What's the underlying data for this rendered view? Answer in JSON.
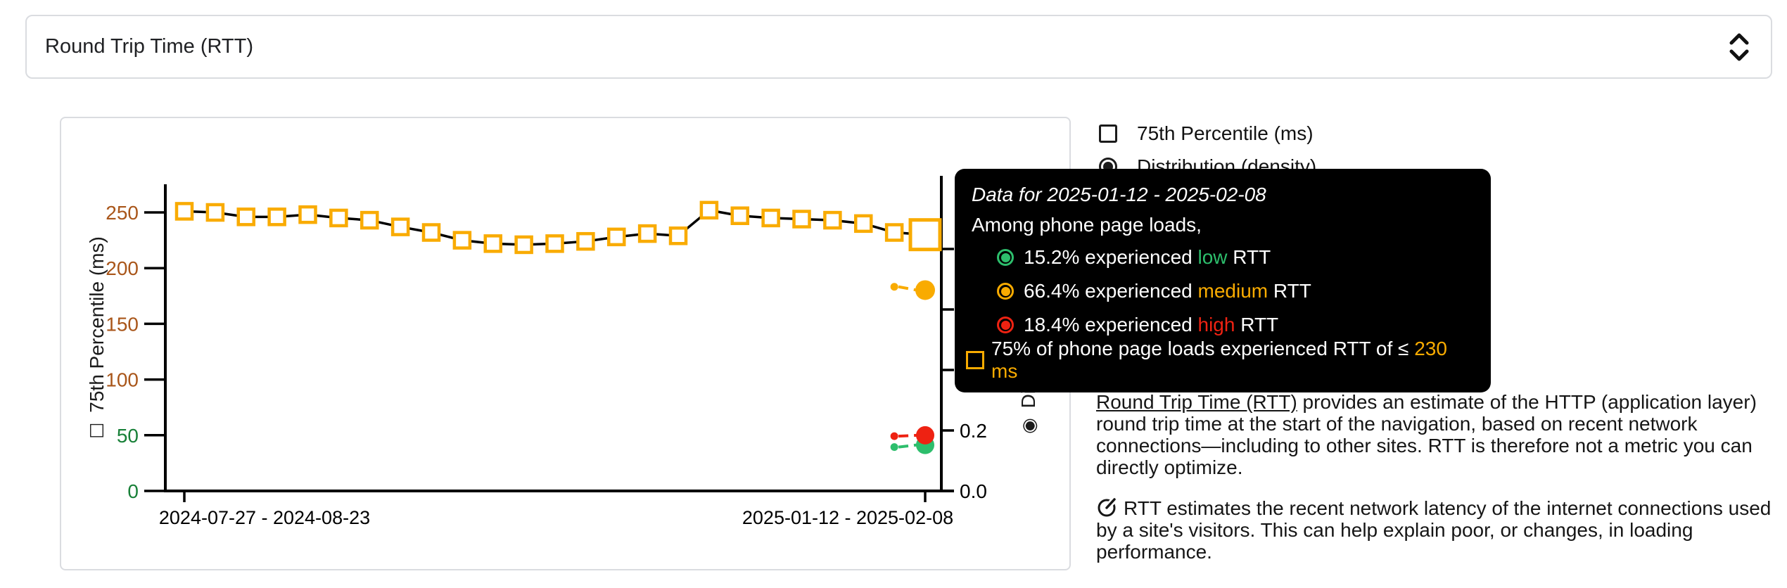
{
  "metric_selector": {
    "value": "Round Trip Time (RTT)",
    "icon": "unfold-chevrons-icon"
  },
  "legend": {
    "items": [
      {
        "label": "75th Percentile (ms)",
        "control": "checkbox",
        "checked": false
      },
      {
        "label": "Distribution (density)",
        "control": "radio",
        "checked": true
      }
    ]
  },
  "colors": {
    "low": "#2DBE6C",
    "medium": "#F9AB00",
    "high": "#EE2212",
    "axis_green": "#188038",
    "axis_brown": "#A9561A",
    "line": "#000000",
    "border": "#dadce0"
  },
  "tooltip": {
    "title": "Data for 2025-01-12 - 2025-02-08",
    "subtitle": "Among phone page loads,",
    "rows": [
      {
        "pct": "15.2%",
        "mid": " experienced ",
        "level": "low",
        "suffix": " RTT"
      },
      {
        "pct": "66.4%",
        "mid": " experienced ",
        "level": "medium",
        "suffix": " RTT"
      },
      {
        "pct": "18.4%",
        "mid": " experienced ",
        "level": "high",
        "suffix": " RTT"
      }
    ],
    "p75_row": {
      "prefix": "75% of phone page loads experienced RTT of ≤ ",
      "value": "230 ms"
    }
  },
  "description": {
    "p1_link": "Round Trip Time (RTT)",
    "p1_rest": " provides an estimate of the HTTP (application layer) round trip time at the start of the navigation, based on recent network connections—including to other sites. RTT is therefore not a metric you can directly optimize.",
    "p2_icon": "speedometer-icon",
    "p2": "RTT estimates the recent network latency of the internet connections used by a site's visitors. This can help explain poor, or changes, in loading performance."
  },
  "chart_data": {
    "type": "line",
    "title": "",
    "ylabel_left_glyph": "☐",
    "ylabel_left": "75th Percentile (ms)",
    "ylabel_right_glyph": "◉",
    "ylabel_right": "Distribution (density)",
    "y_left_ticks": [
      0,
      50,
      100,
      150,
      200,
      250
    ],
    "y_left_range": [
      0,
      275
    ],
    "y_right_ticks": [
      0,
      0.2,
      0.4,
      0.6,
      0.8
    ],
    "y_right_tick_labels_visible": [
      "0.0",
      "0.2"
    ],
    "y_right_range": [
      0,
      1.0
    ],
    "x_tick_labels": [
      "2024-07-27 - 2024-08-23",
      "2025-01-12 - 2025-02-08"
    ],
    "x_tick_indices": [
      0,
      24
    ],
    "highlight_index": 24,
    "p75_series": {
      "name": "75th Percentile (ms)",
      "marker": "open-square",
      "values": [
        251,
        250,
        246,
        246,
        248,
        245,
        243,
        237,
        232,
        225,
        222,
        221,
        222,
        224,
        228,
        231,
        229,
        252,
        247,
        245,
        244,
        243,
        240,
        232,
        230
      ]
    },
    "density_series": [
      {
        "name": "low",
        "x_indices": [
          23,
          24
        ],
        "values": [
          0.145,
          0.152
        ]
      },
      {
        "name": "medium",
        "x_indices": [
          23,
          24
        ],
        "values": [
          0.675,
          0.664
        ]
      },
      {
        "name": "high",
        "x_indices": [
          23,
          24
        ],
        "values": [
          0.181,
          0.184
        ]
      }
    ]
  }
}
